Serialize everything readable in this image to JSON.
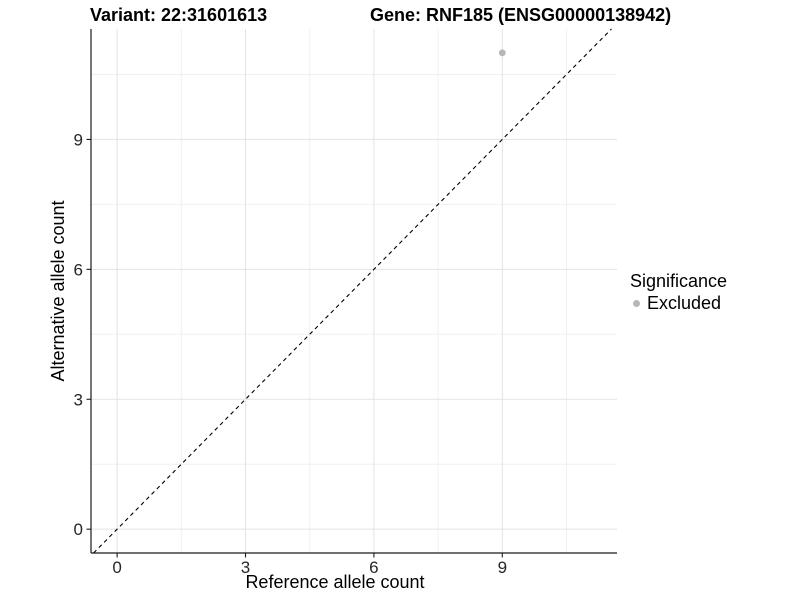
{
  "chart_data": {
    "type": "scatter",
    "title_left": "Variant: 22:31601613",
    "title_right": "Gene: RNF185 (ENSG00000138942)",
    "xlabel": "Reference allele count",
    "ylabel": "Alternative allele count",
    "x_ticks": [
      0,
      3,
      6,
      9
    ],
    "y_ticks": [
      0,
      3,
      6,
      9
    ],
    "minor_ticks": [
      1.5,
      4.5,
      7.5,
      10.5
    ],
    "xlim": [
      -0.61,
      11.68
    ],
    "ylim": [
      -0.55,
      11.55
    ],
    "grid": "major+minor on white panel",
    "legend_position": "right-middle",
    "legend": {
      "title": "Significance",
      "items": [
        {
          "label": "Excluded",
          "marker": "circle",
          "color": "#b7b7b7"
        }
      ]
    },
    "series": [
      {
        "name": "Excluded",
        "marker": "circle",
        "color": "#b7b7b7",
        "points": [
          {
            "x": 9,
            "y": 11
          }
        ]
      }
    ],
    "reference_line": {
      "kind": "identity y = x",
      "style": "dashed",
      "color": "#000000"
    },
    "colors": {
      "background": "#ffffff",
      "grid_major": "#e3e3e3",
      "grid_minor": "#f0f0f0",
      "axis_line": "#1a1a1a",
      "tick_label": "#262626",
      "title_text": "#000000"
    }
  }
}
